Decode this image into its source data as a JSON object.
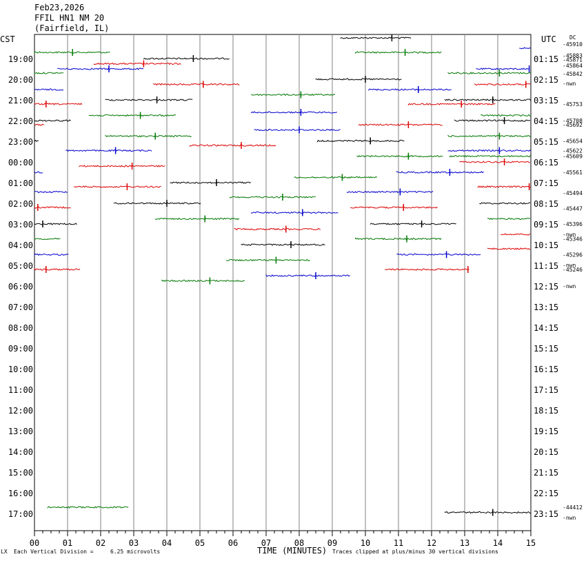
{
  "header": {
    "date": "Feb23,2026",
    "station": "FFIL HN1 NM 20",
    "location": "(Fairfield, IL)"
  },
  "left_axis_title": "CST",
  "right_axis_title": "UTC",
  "dc_title": "DC",
  "chart_data": {
    "type": "seismogram",
    "xlabel": "TIME (MINUTES)",
    "x_ticks": [
      "00",
      "01",
      "02",
      "03",
      "04",
      "05",
      "06",
      "07",
      "08",
      "09",
      "10",
      "11",
      "12",
      "13",
      "14",
      "15"
    ],
    "xlim": [
      0,
      15
    ],
    "rows_left": [
      "19:00",
      "20:00",
      "21:00",
      "22:00",
      "23:00",
      "00:00",
      "01:00",
      "02:00",
      "03:00",
      "04:00",
      "05:00",
      "06:00",
      "07:00",
      "08:00",
      "09:00",
      "10:00",
      "11:00",
      "12:00",
      "13:00",
      "14:00",
      "15:00",
      "16:00",
      "17:00"
    ],
    "rows_right": [
      "01:15",
      "02:15",
      "03:15",
      "04:15",
      "05:15",
      "06:15",
      "07:15",
      "08:15",
      "09:15",
      "10:15",
      "11:15",
      "12:15",
      "13:15",
      "14:15",
      "15:15",
      "16:15",
      "17:15",
      "18:15",
      "19:15",
      "20:15",
      "21:15",
      "22:15",
      "23:15"
    ],
    "dc_labels": [
      {
        "row": -0.7,
        "text": "-45910"
      },
      {
        "row": -0.15,
        "text": "-45883"
      },
      {
        "row": 0.05,
        "text": "-45871"
      },
      {
        "row": 0.33,
        "text": "-45864"
      },
      {
        "row": 0.73,
        "text": "-45842"
      },
      {
        "row": 1.2,
        "text": "-nwn"
      },
      {
        "row": 2.2,
        "text": "-45753"
      },
      {
        "row": 3.0,
        "text": "-45708"
      },
      {
        "row": 3.2,
        "text": "-45692"
      },
      {
        "row": 3.98,
        "text": "-45654"
      },
      {
        "row": 4.45,
        "text": "-45622"
      },
      {
        "row": 4.72,
        "text": "-45609"
      },
      {
        "row": 5.5,
        "text": "-45561"
      },
      {
        "row": 6.5,
        "text": "-45494"
      },
      {
        "row": 7.25,
        "text": "-45447"
      },
      {
        "row": 8.0,
        "text": "-45396"
      },
      {
        "row": 8.5,
        "text": "-nwn"
      },
      {
        "row": 8.72,
        "text": "-45346"
      },
      {
        "row": 9.48,
        "text": "-45296"
      },
      {
        "row": 9.98,
        "text": "-nwn"
      },
      {
        "row": 10.2,
        "text": "-45246"
      },
      {
        "row": 11.0,
        "text": "-nwn"
      },
      {
        "row": 21.7,
        "text": "-44412"
      },
      {
        "row": 22.2,
        "text": "-nwn"
      }
    ],
    "traces": [
      {
        "row": -1.0,
        "x0": 9.25,
        "x1": 11.4,
        "color": "black",
        "spikes": [
          10.8
        ]
      },
      {
        "row": -0.5,
        "x0": 14.65,
        "x1": 15.0,
        "color": "blue",
        "spikes": []
      },
      {
        "row": -0.3,
        "x0": 0.0,
        "x1": 2.3,
        "color": "green",
        "spikes": [
          1.15
        ]
      },
      {
        "row": -0.3,
        "x0": 9.7,
        "x1": 12.3,
        "color": "green",
        "spikes": [
          11.2
        ]
      },
      {
        "row": 0.0,
        "x0": 3.3,
        "x1": 5.9,
        "color": "black",
        "spikes": [
          4.8
        ]
      },
      {
        "row": 0.25,
        "x0": 1.8,
        "x1": 4.45,
        "color": "red",
        "spikes": [
          3.3
        ]
      },
      {
        "row": 0.5,
        "x0": 0.7,
        "x1": 3.3,
        "color": "blue",
        "spikes": [
          2.25
        ]
      },
      {
        "row": 0.5,
        "x0": 13.35,
        "x1": 14.95,
        "color": "blue",
        "spikes": [
          14.95
        ]
      },
      {
        "row": 0.7,
        "x0": 0.0,
        "x1": 0.9,
        "color": "green",
        "spikes": []
      },
      {
        "row": 0.7,
        "x0": 12.5,
        "x1": 15.0,
        "color": "green",
        "spikes": [
          14.05
        ]
      },
      {
        "row": 1.0,
        "x0": 8.5,
        "x1": 11.1,
        "color": "black",
        "spikes": [
          10.0
        ]
      },
      {
        "row": 1.25,
        "x0": 3.6,
        "x1": 6.2,
        "color": "red",
        "spikes": [
          5.1
        ]
      },
      {
        "row": 1.25,
        "x0": 13.3,
        "x1": 15.0,
        "color": "red",
        "spikes": [
          14.85
        ]
      },
      {
        "row": 1.5,
        "x0": 0.0,
        "x1": 0.9,
        "color": "blue",
        "spikes": []
      },
      {
        "row": 1.5,
        "x0": 10.1,
        "x1": 12.6,
        "color": "blue",
        "spikes": [
          11.6
        ]
      },
      {
        "row": 1.75,
        "x0": 6.55,
        "x1": 9.1,
        "color": "green",
        "spikes": [
          8.05
        ]
      },
      {
        "row": 2.0,
        "x0": 2.15,
        "x1": 4.8,
        "color": "black",
        "spikes": [
          3.7
        ]
      },
      {
        "row": 2.0,
        "x0": 12.4,
        "x1": 15.0,
        "color": "black",
        "spikes": [
          13.85
        ]
      },
      {
        "row": 2.2,
        "x0": 0.0,
        "x1": 1.45,
        "color": "red",
        "spikes": [
          0.35
        ]
      },
      {
        "row": 2.2,
        "x0": 11.3,
        "x1": 13.95,
        "color": "red",
        "spikes": [
          12.9
        ]
      },
      {
        "row": 2.6,
        "x0": 6.55,
        "x1": 9.15,
        "color": "blue",
        "spikes": [
          8.05
        ]
      },
      {
        "row": 2.75,
        "x0": 1.65,
        "x1": 4.3,
        "color": "green",
        "spikes": [
          3.2
        ]
      },
      {
        "row": 2.75,
        "x0": 13.5,
        "x1": 15.0,
        "color": "green",
        "spikes": []
      },
      {
        "row": 3.0,
        "x0": 0.0,
        "x1": 1.1,
        "color": "black",
        "spikes": []
      },
      {
        "row": 3.0,
        "x0": 12.7,
        "x1": 15.0,
        "color": "black",
        "spikes": [
          14.2
        ]
      },
      {
        "row": 3.2,
        "x0": 0.0,
        "x1": 0.3,
        "color": "red",
        "spikes": []
      },
      {
        "row": 3.2,
        "x0": 9.8,
        "x1": 12.35,
        "color": "red",
        "spikes": [
          11.3
        ]
      },
      {
        "row": 3.45,
        "x0": 6.65,
        "x1": 9.25,
        "color": "blue",
        "spikes": [
          8.0
        ]
      },
      {
        "row": 3.75,
        "x0": 2.15,
        "x1": 4.75,
        "color": "green",
        "spikes": [
          3.65
        ]
      },
      {
        "row": 3.75,
        "x0": 12.5,
        "x1": 15.0,
        "color": "green",
        "spikes": [
          14.05
        ]
      },
      {
        "row": 3.98,
        "x0": 0.0,
        "x1": 0.15,
        "color": "black",
        "spikes": []
      },
      {
        "row": 3.98,
        "x0": 8.55,
        "x1": 11.2,
        "color": "black",
        "spikes": [
          10.15
        ]
      },
      {
        "row": 4.2,
        "x0": 4.7,
        "x1": 7.3,
        "color": "red",
        "spikes": [
          6.25
        ]
      },
      {
        "row": 4.45,
        "x0": 0.95,
        "x1": 3.55,
        "color": "blue",
        "spikes": [
          2.45
        ]
      },
      {
        "row": 4.45,
        "x0": 12.5,
        "x1": 15.0,
        "color": "blue",
        "spikes": [
          14.05
        ]
      },
      {
        "row": 4.72,
        "x0": 9.75,
        "x1": 12.35,
        "color": "green",
        "spikes": [
          11.3
        ]
      },
      {
        "row": 4.72,
        "x0": 12.55,
        "x1": 15.0,
        "color": "green",
        "spikes": []
      },
      {
        "row": 5.0,
        "x0": 12.85,
        "x1": 15.0,
        "color": "red",
        "spikes": [
          14.2
        ]
      },
      {
        "row": 5.2,
        "x0": 1.35,
        "x1": 3.95,
        "color": "red",
        "spikes": [
          2.95
        ]
      },
      {
        "row": 5.5,
        "x0": 0.0,
        "x1": 0.25,
        "color": "blue",
        "spikes": []
      },
      {
        "row": 5.5,
        "x0": 10.95,
        "x1": 13.6,
        "color": "blue",
        "spikes": [
          12.55
        ]
      },
      {
        "row": 5.75,
        "x0": 7.85,
        "x1": 10.35,
        "color": "green",
        "spikes": [
          9.3
        ]
      },
      {
        "row": 6.0,
        "x0": 4.1,
        "x1": 6.55,
        "color": "black",
        "spikes": [
          5.5
        ]
      },
      {
        "row": 6.2,
        "x0": 1.2,
        "x1": 3.85,
        "color": "red",
        "spikes": [
          2.8
        ]
      },
      {
        "row": 6.2,
        "x0": 13.4,
        "x1": 15.0,
        "color": "red",
        "spikes": [
          14.95
        ]
      },
      {
        "row": 6.45,
        "x0": 0.0,
        "x1": 1.0,
        "color": "blue",
        "spikes": []
      },
      {
        "row": 6.45,
        "x0": 9.45,
        "x1": 12.05,
        "color": "blue",
        "spikes": [
          11.05
        ]
      },
      {
        "row": 6.7,
        "x0": 5.9,
        "x1": 8.5,
        "color": "green",
        "spikes": [
          7.5
        ]
      },
      {
        "row": 7.0,
        "x0": 2.4,
        "x1": 5.05,
        "color": "black",
        "spikes": [
          4.0
        ]
      },
      {
        "row": 7.0,
        "x0": 13.45,
        "x1": 15.0,
        "color": "black",
        "spikes": []
      },
      {
        "row": 7.2,
        "x0": 0.0,
        "x1": 1.1,
        "color": "red",
        "spikes": [
          0.1
        ]
      },
      {
        "row": 7.2,
        "x0": 9.55,
        "x1": 12.2,
        "color": "red",
        "spikes": [
          11.15
        ]
      },
      {
        "row": 7.45,
        "x0": 6.55,
        "x1": 9.2,
        "color": "blue",
        "spikes": [
          8.1
        ]
      },
      {
        "row": 7.75,
        "x0": 3.65,
        "x1": 6.2,
        "color": "green",
        "spikes": [
          5.15
        ]
      },
      {
        "row": 7.75,
        "x0": 13.7,
        "x1": 15.0,
        "color": "green",
        "spikes": []
      },
      {
        "row": 8.0,
        "x0": 0.0,
        "x1": 1.3,
        "color": "black",
        "spikes": [
          0.25
        ]
      },
      {
        "row": 8.0,
        "x0": 10.15,
        "x1": 12.75,
        "color": "black",
        "spikes": [
          11.7
        ]
      },
      {
        "row": 8.25,
        "x0": 6.05,
        "x1": 8.65,
        "color": "red",
        "spikes": [
          7.6
        ]
      },
      {
        "row": 8.5,
        "x0": 14.1,
        "x1": 15.0,
        "color": "red",
        "spikes": []
      },
      {
        "row": 8.72,
        "x0": 0.0,
        "x1": 0.8,
        "color": "green",
        "spikes": []
      },
      {
        "row": 8.72,
        "x0": 9.7,
        "x1": 12.3,
        "color": "green",
        "spikes": [
          11.25
        ]
      },
      {
        "row": 9.0,
        "x0": 6.25,
        "x1": 8.8,
        "color": "black",
        "spikes": [
          7.75
        ]
      },
      {
        "row": 9.2,
        "x0": 13.7,
        "x1": 15.0,
        "color": "red",
        "spikes": []
      },
      {
        "row": 9.48,
        "x0": 0.0,
        "x1": 1.05,
        "color": "blue",
        "spikes": []
      },
      {
        "row": 9.48,
        "x0": 10.95,
        "x1": 13.5,
        "color": "blue",
        "spikes": [
          12.45
        ]
      },
      {
        "row": 9.75,
        "x0": 5.8,
        "x1": 8.35,
        "color": "green",
        "spikes": [
          7.3
        ]
      },
      {
        "row": 10.2,
        "x0": 0.0,
        "x1": 1.4,
        "color": "red",
        "spikes": [
          0.35
        ]
      },
      {
        "row": 10.2,
        "x0": 10.6,
        "x1": 13.15,
        "color": "red",
        "spikes": [
          13.1
        ]
      },
      {
        "row": 10.5,
        "x0": 7.0,
        "x1": 9.55,
        "color": "blue",
        "spikes": [
          8.5
        ]
      },
      {
        "row": 10.75,
        "x0": 3.85,
        "x1": 6.35,
        "color": "green",
        "spikes": [
          5.3
        ]
      },
      {
        "row": 21.7,
        "x0": 0.4,
        "x1": 2.85,
        "color": "green",
        "spikes": []
      },
      {
        "row": 21.95,
        "x0": 12.4,
        "x1": 15.0,
        "color": "black",
        "spikes": [
          13.85
        ]
      }
    ]
  },
  "footer": {
    "vertical_division_label": "Each Vertical Division =",
    "vertical_division_value": "6.25 microvolts",
    "clip_note": "Traces clipped at plus/minus 30 vertical divisions",
    "corner_mark": "LX"
  },
  "colors": {
    "black": "#000000",
    "red": "#dd0000",
    "blue": "#0000cc",
    "green": "#007700",
    "grid": "#808080"
  }
}
